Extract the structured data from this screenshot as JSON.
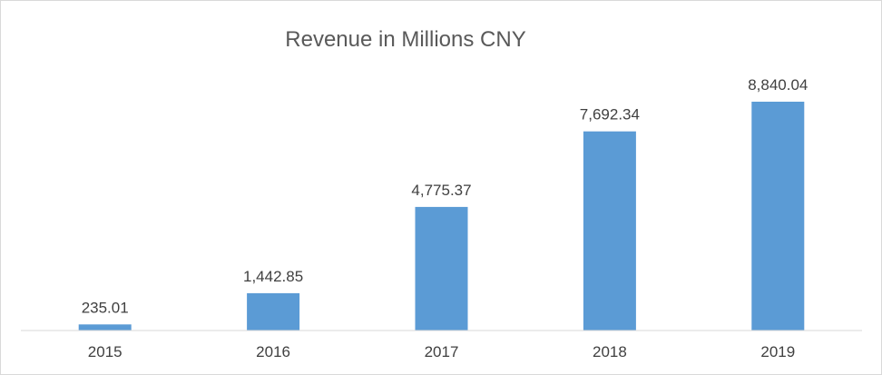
{
  "chart_data": {
    "type": "bar",
    "title": "Revenue in Millions CNY",
    "categories": [
      "2015",
      "2016",
      "2017",
      "2018",
      "2019"
    ],
    "values": [
      235.01,
      1442.85,
      4775.37,
      7692.34,
      8840.04
    ],
    "data_labels": [
      "235.01",
      "1,442.85",
      "4,775.37",
      "7,692.34",
      "8,840.04"
    ],
    "xlabel": "",
    "ylabel": "",
    "ylim": [
      0,
      10000
    ],
    "grid": false,
    "legend": "none",
    "bar_color": "#5b9bd5"
  }
}
